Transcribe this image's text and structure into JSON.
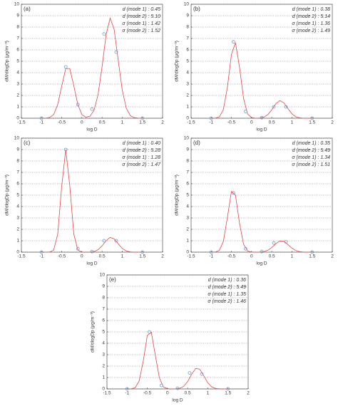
{
  "chart_data": [
    {
      "type": "line",
      "panel_label": "(a)",
      "annotations": [
        "d (mode 1) : 0.45",
        "d (mode 2) : 5.10",
        "σ (mode 1) : 1.42",
        "σ (mode 2) : 1.52"
      ],
      "x_label": "log D",
      "y_label": "dM/dlogDp (μg/m⁻³)",
      "xlim": [
        -1.5,
        2
      ],
      "xticks": [
        -1.5,
        -1,
        -0.5,
        0,
        0.5,
        1,
        1.5,
        2
      ],
      "ylim": [
        0,
        10
      ],
      "yticks": [
        0,
        1,
        2,
        3,
        4,
        5,
        6,
        7,
        8,
        9,
        10
      ],
      "grid": true,
      "series": [
        {
          "type": "line",
          "color": "#e04848",
          "x": [
            -1.0,
            -0.9,
            -0.8,
            -0.7,
            -0.6,
            -0.5,
            -0.4,
            -0.3,
            -0.2,
            -0.1,
            0.0,
            0.1,
            0.2,
            0.3,
            0.4,
            0.5,
            0.6,
            0.7,
            0.8,
            0.9,
            1.0,
            1.1,
            1.2,
            1.3,
            1.4,
            1.5
          ],
          "values": [
            0,
            0.01,
            0.06,
            0.32,
            1.19,
            2.83,
            4.36,
            4.36,
            2.83,
            1.19,
            0.32,
            0.09,
            0.18,
            0.69,
            2.06,
            4.52,
            7.33,
            8.79,
            7.79,
            5.1,
            2.47,
            0.88,
            0.23,
            0.05,
            0.01,
            0
          ]
        },
        {
          "type": "scatter",
          "color": "#6f9cc4",
          "x": [
            -1,
            -0.4,
            -0.1,
            0.25,
            0.55,
            0.85,
            1.5
          ],
          "values": [
            0,
            4.5,
            1.2,
            0.8,
            7.4,
            5.8,
            0
          ]
        }
      ]
    },
    {
      "type": "line",
      "panel_label": "(b)",
      "annotations": [
        "d (mode 1) : 0.38",
        "d (mode 2) : 5.14",
        "σ (mode 1) : 1.36",
        "σ (mode 2) : 1.49"
      ],
      "x_label": "log D",
      "y_label": "dM/dlogDp (μg/m⁻³)",
      "xlim": [
        -1.5,
        2
      ],
      "xticks": [
        -1.5,
        -1,
        -0.5,
        0,
        0.5,
        1,
        1.5,
        2
      ],
      "ylim": [
        0,
        10
      ],
      "yticks": [
        0,
        1,
        2,
        3,
        4,
        5,
        6,
        7,
        8,
        9,
        10
      ],
      "grid": true,
      "series": [
        {
          "type": "line",
          "color": "#e04848",
          "x": [
            -1.0,
            -0.9,
            -0.8,
            -0.7,
            -0.6,
            -0.5,
            -0.4,
            -0.3,
            -0.2,
            -0.1,
            0.0,
            0.1,
            0.2,
            0.3,
            0.4,
            0.5,
            0.6,
            0.7,
            0.8,
            0.9,
            1.0,
            1.1,
            1.2,
            1.3,
            1.4,
            1.5
          ],
          "values": [
            0,
            0.01,
            0.12,
            0.75,
            2.71,
            5.6,
            6.63,
            4.48,
            1.74,
            0.38,
            0.05,
            0,
            0.02,
            0.09,
            0.31,
            0.74,
            1.27,
            1.55,
            1.35,
            0.85,
            0.38,
            0.12,
            0.03,
            0,
            0,
            0
          ]
        },
        {
          "type": "scatter",
          "color": "#6f9cc4",
          "x": [
            -1,
            -0.45,
            -0.15,
            0.25,
            0.55,
            0.85,
            1.5
          ],
          "values": [
            0,
            6.7,
            0.6,
            0.05,
            1.0,
            1.0,
            0
          ]
        }
      ]
    },
    {
      "type": "line",
      "panel_label": "(c)",
      "annotations": [
        "d (mode 1) : 0.40",
        "d (mode 2) : 5.28",
        "σ (mode 1) : 1.28",
        "σ (mode 2) : 1.47"
      ],
      "x_label": "log D",
      "y_label": "dM/dlogDp (μg/m⁻³)",
      "xlim": [
        -1.5,
        2
      ],
      "xticks": [
        -1.5,
        -1,
        -0.5,
        0,
        0.5,
        1,
        1.5,
        2
      ],
      "ylim": [
        0,
        10
      ],
      "yticks": [
        0,
        1,
        2,
        3,
        4,
        5,
        6,
        7,
        8,
        9,
        10
      ],
      "grid": true,
      "series": [
        {
          "type": "line",
          "color": "#e04848",
          "x": [
            -1.0,
            -0.9,
            -0.8,
            -0.7,
            -0.6,
            -0.5,
            -0.4,
            -0.3,
            -0.2,
            -0.1,
            0.0,
            0.1,
            0.2,
            0.3,
            0.4,
            0.5,
            0.6,
            0.7,
            0.8,
            0.9,
            1.0,
            1.1,
            1.2,
            1.3,
            1.4,
            1.5
          ],
          "values": [
            0,
            0,
            0.01,
            0.18,
            1.57,
            5.81,
            9.0,
            5.81,
            1.57,
            0.18,
            0.01,
            0,
            0.01,
            0.05,
            0.21,
            0.55,
            1.0,
            1.29,
            1.16,
            0.73,
            0.32,
            0.1,
            0.02,
            0,
            0,
            0
          ]
        },
        {
          "type": "scatter",
          "color": "#6f9cc4",
          "x": [
            -1,
            -0.4,
            -0.1,
            0.25,
            0.55,
            0.85,
            1.5
          ],
          "values": [
            0,
            9.0,
            0.3,
            0.05,
            1.0,
            1.0,
            0
          ]
        }
      ]
    },
    {
      "type": "line",
      "panel_label": "(d)",
      "annotations": [
        "d (mode 1) : 0.35",
        "d (mode 2) : 5.49",
        "σ (mode 1) : 1.34",
        "σ (mode 2) : 1.51"
      ],
      "x_label": "log D",
      "y_label": "dM/dlogDp (μg/m⁻³)",
      "xlim": [
        -1.5,
        2
      ],
      "xticks": [
        -1.5,
        -1,
        -0.5,
        0,
        0.5,
        1,
        1.5,
        2
      ],
      "ylim": [
        0,
        10
      ],
      "yticks": [
        0,
        1,
        2,
        3,
        4,
        5,
        6,
        7,
        8,
        9,
        10
      ],
      "grid": true,
      "series": [
        {
          "type": "line",
          "color": "#e04848",
          "x": [
            -1.0,
            -0.9,
            -0.8,
            -0.7,
            -0.6,
            -0.5,
            -0.4,
            -0.3,
            -0.2,
            -0.1,
            0.0,
            0.1,
            0.2,
            0.3,
            0.4,
            0.5,
            0.6,
            0.7,
            0.8,
            0.9,
            1.0,
            1.1,
            1.2,
            1.3,
            1.4,
            1.5
          ],
          "values": [
            0,
            0.01,
            0.16,
            0.94,
            3.05,
            5.33,
            5.01,
            2.54,
            0.69,
            0.1,
            0.01,
            0,
            0.01,
            0.05,
            0.16,
            0.41,
            0.74,
            0.98,
            0.95,
            0.67,
            0.35,
            0.13,
            0.04,
            0.01,
            0,
            0
          ]
        },
        {
          "type": "scatter",
          "color": "#6f9cc4",
          "x": [
            -1,
            -0.45,
            -0.15,
            0.25,
            0.55,
            0.85,
            1.5
          ],
          "values": [
            0,
            5.2,
            0.3,
            0.05,
            0.8,
            0.9,
            0
          ]
        }
      ]
    },
    {
      "type": "line",
      "panel_label": "(e)",
      "annotations": [
        "d (mode 1) : 0.36",
        "d (mode 2) : 5.49",
        "σ (mode 1) : 1.35",
        "σ (mode 2) : 1.46"
      ],
      "x_label": "log D",
      "y_label": "dM/dlogDp (μg/m⁻³)",
      "xlim": [
        -1.5,
        2
      ],
      "xticks": [
        -1.5,
        -1,
        -0.5,
        0,
        0.5,
        1,
        1.5,
        2
      ],
      "ylim": [
        0,
        10
      ],
      "yticks": [
        0,
        1,
        2,
        3,
        4,
        5,
        6,
        7,
        8,
        9,
        10
      ],
      "grid": true,
      "series": [
        {
          "type": "line",
          "color": "#e04848",
          "x": [
            -1.0,
            -0.9,
            -0.8,
            -0.7,
            -0.6,
            -0.5,
            -0.4,
            -0.3,
            -0.2,
            -0.1,
            0.0,
            0.1,
            0.2,
            0.3,
            0.4,
            0.5,
            0.6,
            0.7,
            0.8,
            0.9,
            1.0,
            1.1,
            1.2,
            1.3,
            1.4,
            1.5
          ],
          "values": [
            0,
            0.01,
            0.11,
            0.71,
            2.45,
            4.68,
            4.96,
            2.92,
            0.96,
            0.17,
            0.02,
            0,
            0.01,
            0.05,
            0.22,
            0.64,
            1.29,
            1.8,
            1.73,
            1.15,
            0.53,
            0.17,
            0.04,
            0.01,
            0,
            0
          ]
        },
        {
          "type": "scatter",
          "color": "#6f9cc4",
          "x": [
            -1,
            -0.45,
            -0.15,
            0.25,
            0.55,
            0.85,
            1.5
          ],
          "values": [
            0,
            5.0,
            0.3,
            0.05,
            1.4,
            1.3,
            0
          ]
        }
      ]
    }
  ]
}
